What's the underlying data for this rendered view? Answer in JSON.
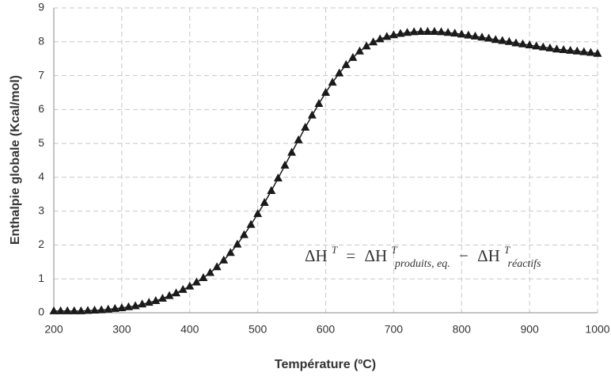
{
  "chart_data": {
    "type": "line",
    "xlabel": "Température (ºC)",
    "ylabel": "Enthalpie globale (Kcal/mol)",
    "annotation_parts": [
      "ΔH",
      "T",
      "=",
      "ΔH",
      "T",
      "produits, eq.",
      "−",
      "ΔH",
      "T",
      "réactifs"
    ],
    "x": [
      200,
      210,
      220,
      230,
      240,
      250,
      260,
      270,
      280,
      290,
      300,
      310,
      320,
      330,
      340,
      350,
      360,
      370,
      380,
      390,
      400,
      410,
      420,
      430,
      440,
      450,
      460,
      470,
      480,
      490,
      500,
      510,
      520,
      530,
      540,
      550,
      560,
      570,
      580,
      590,
      600,
      610,
      620,
      630,
      640,
      650,
      660,
      670,
      680,
      690,
      700,
      710,
      720,
      730,
      740,
      750,
      760,
      770,
      780,
      790,
      800,
      810,
      820,
      830,
      840,
      850,
      860,
      870,
      880,
      890,
      900,
      910,
      920,
      930,
      940,
      950,
      960,
      970,
      980,
      990,
      1000
    ],
    "series": [
      {
        "color": "#1a1a1a",
        "marker": "triangle",
        "values": [
          0.05,
          0.05,
          0.05,
          0.05,
          0.05,
          0.06,
          0.07,
          0.08,
          0.1,
          0.12,
          0.14,
          0.17,
          0.2,
          0.25,
          0.3,
          0.35,
          0.42,
          0.5,
          0.58,
          0.68,
          0.78,
          0.9,
          1.03,
          1.18,
          1.35,
          1.55,
          1.77,
          2.02,
          2.3,
          2.6,
          2.92,
          3.25,
          3.6,
          3.97,
          4.35,
          4.73,
          5.1,
          5.47,
          5.83,
          6.17,
          6.5,
          6.8,
          7.07,
          7.32,
          7.53,
          7.72,
          7.87,
          7.99,
          8.08,
          8.15,
          8.2,
          8.24,
          8.27,
          8.29,
          8.3,
          8.3,
          8.3,
          8.29,
          8.27,
          8.25,
          8.22,
          8.19,
          8.16,
          8.13,
          8.1,
          8.06,
          8.03,
          8.0,
          7.96,
          7.93,
          7.9,
          7.87,
          7.84,
          7.81,
          7.78,
          7.76,
          7.74,
          7.72,
          7.7,
          7.68,
          7.65
        ]
      }
    ],
    "xlim": [
      200,
      1000
    ],
    "xticks": [
      200,
      300,
      400,
      500,
      600,
      700,
      800,
      900,
      1000
    ],
    "ylim": [
      0,
      9
    ],
    "yticks": [
      0,
      1,
      2,
      3,
      4,
      5,
      6,
      7,
      8,
      9
    ],
    "grid": true
  }
}
